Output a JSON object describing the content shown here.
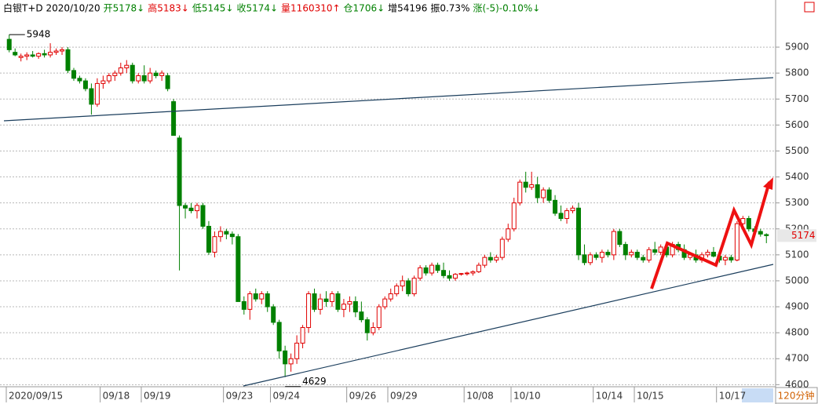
{
  "header": [
    {
      "text": "白银T+D 2020/10/20",
      "color": "#000000"
    },
    {
      "text": "开5178↓",
      "color": "#008000"
    },
    {
      "text": "高5183↓",
      "color": "#e00000"
    },
    {
      "text": "低5145↓",
      "color": "#008000"
    },
    {
      "text": "收5174↓",
      "color": "#008000"
    },
    {
      "text": "量1160310↑",
      "color": "#e00000"
    },
    {
      "text": "仓1706↓",
      "color": "#008000"
    },
    {
      "text": "增54196",
      "color": "#000000"
    },
    {
      "text": "振0.73%",
      "color": "#000000"
    },
    {
      "text": "涨(-5)-0.10%↓",
      "color": "#008000"
    }
  ],
  "chart_data": {
    "type": "candlestick",
    "up_color": "#e00000",
    "down_color": "#008000",
    "grid": true,
    "ylim": [
      4595,
      6015
    ],
    "yticks": [
      4600,
      4700,
      4800,
      4900,
      5000,
      5100,
      5200,
      5300,
      5400,
      5500,
      5600,
      5700,
      5800,
      5900
    ],
    "high_marker": 5948,
    "low_marker": 4629,
    "last_price": 5174,
    "period": "120分钟",
    "categories": [
      "2020/09/15",
      null,
      null,
      null,
      null,
      null,
      null,
      null,
      null,
      null,
      null,
      null,
      null,
      null,
      null,
      null,
      "09/18",
      null,
      null,
      null,
      null,
      null,
      null,
      "09/19",
      null,
      null,
      null,
      null,
      null,
      null,
      null,
      null,
      null,
      null,
      null,
      null,
      null,
      "09/23",
      null,
      null,
      null,
      null,
      null,
      null,
      null,
      "09/24",
      null,
      null,
      null,
      null,
      null,
      null,
      null,
      null,
      null,
      null,
      null,
      null,
      "09/26",
      null,
      null,
      null,
      null,
      null,
      null,
      "09/29",
      null,
      null,
      null,
      null,
      null,
      null,
      null,
      null,
      null,
      null,
      null,
      null,
      "10/08",
      null,
      null,
      null,
      null,
      null,
      null,
      null,
      "10/10",
      null,
      null,
      null,
      null,
      null,
      null,
      null,
      null,
      null,
      null,
      null,
      null,
      null,
      "10/14",
      null,
      null,
      null,
      null,
      null,
      null,
      "10/15",
      null,
      null,
      null,
      null,
      null,
      null,
      null,
      null,
      null,
      null,
      null,
      null,
      null,
      "10/17",
      null,
      null,
      null,
      null,
      null,
      null,
      null,
      null
    ],
    "open": [
      5930,
      5880,
      5860,
      5865,
      5870,
      5865,
      5875,
      5870,
      5880,
      5885,
      5890,
      5810,
      5780,
      5770,
      5740,
      5680,
      5760,
      5770,
      5790,
      5800,
      5820,
      5830,
      5770,
      5790,
      5770,
      5800,
      5790,
      5790,
      5690,
      5550,
      5290,
      5280,
      5270,
      5290,
      5210,
      5110,
      5170,
      5190,
      5180,
      5170,
      4920,
      4890,
      4950,
      4930,
      4950,
      4900,
      4840,
      4730,
      4680,
      4700,
      4760,
      4820,
      4950,
      4890,
      4930,
      4920,
      4950,
      4890,
      4910,
      4920,
      4880,
      4850,
      4800,
      4820,
      4900,
      4930,
      4950,
      4980,
      5000,
      4950,
      5010,
      5050,
      5030,
      5060,
      5040,
      5020,
      5010,
      5025,
      5028,
      5030,
      5035,
      5060,
      5090,
      5080,
      5090,
      5160,
      5200,
      5300,
      5380,
      5360,
      5370,
      5320,
      5350,
      5310,
      5260,
      5240,
      5270,
      5280,
      5100,
      5070,
      5100,
      5090,
      5110,
      5100,
      5190,
      5140,
      5100,
      5110,
      5090,
      5080,
      5120,
      5110,
      5130,
      5100,
      5140,
      5120,
      5090,
      5100,
      5080,
      5100,
      5110,
      5095,
      5080,
      5090,
      5080,
      5220,
      5240,
      5200,
      5190,
      5178
    ],
    "high": [
      5948,
      5895,
      5875,
      5880,
      5885,
      5880,
      5890,
      5915,
      5895,
      5900,
      5900,
      5820,
      5790,
      5780,
      5760,
      5780,
      5790,
      5800,
      5810,
      5840,
      5850,
      5840,
      5800,
      5830,
      5820,
      5810,
      5810,
      5800,
      5700,
      5560,
      5300,
      5300,
      5300,
      5300,
      5230,
      5190,
      5210,
      5200,
      5190,
      5180,
      4940,
      4960,
      4970,
      4960,
      4960,
      4910,
      4850,
      4750,
      4720,
      4790,
      4830,
      4960,
      4970,
      4950,
      4960,
      4960,
      4960,
      4930,
      4940,
      4940,
      4920,
      4860,
      4840,
      4910,
      4940,
      4970,
      4990,
      5020,
      5010,
      5020,
      5060,
      5060,
      5070,
      5070,
      5070,
      5040,
      5030,
      5030,
      5035,
      5040,
      5070,
      5100,
      5110,
      5100,
      5170,
      5220,
      5320,
      5390,
      5420,
      5420,
      5400,
      5360,
      5360,
      5330,
      5290,
      5280,
      5290,
      5300,
      5140,
      5110,
      5110,
      5120,
      5120,
      5200,
      5200,
      5150,
      5120,
      5120,
      5100,
      5130,
      5150,
      5140,
      5140,
      5150,
      5150,
      5140,
      5110,
      5120,
      5110,
      5120,
      5130,
      5110,
      5100,
      5100,
      5230,
      5250,
      5250,
      5210,
      5200,
      5183
    ],
    "low": [
      5880,
      5865,
      5845,
      5850,
      5860,
      5855,
      5860,
      5860,
      5870,
      5870,
      5800,
      5770,
      5760,
      5730,
      5640,
      5670,
      5740,
      5760,
      5770,
      5790,
      5800,
      5760,
      5760,
      5760,
      5760,
      5780,
      5770,
      5730,
      5560,
      5040,
      5240,
      5260,
      5240,
      5200,
      5100,
      5090,
      5150,
      5160,
      5140,
      4920,
      4870,
      4850,
      4920,
      4910,
      4880,
      4830,
      4700,
      4629,
      4650,
      4680,
      4740,
      4800,
      4880,
      4870,
      4900,
      4900,
      4880,
      4860,
      4880,
      4860,
      4840,
      4770,
      4790,
      4810,
      4890,
      4920,
      4940,
      4960,
      4940,
      4940,
      5000,
      5020,
      5020,
      5030,
      5010,
      5000,
      5000,
      5020,
      5020,
      5020,
      5030,
      5050,
      5070,
      5070,
      5080,
      5150,
      5190,
      5290,
      5340,
      5350,
      5300,
      5300,
      5300,
      5250,
      5230,
      5220,
      5260,
      5080,
      5060,
      5060,
      5080,
      5070,
      5090,
      5080,
      5130,
      5080,
      5090,
      5080,
      5070,
      5070,
      5100,
      5100,
      5090,
      5090,
      5110,
      5080,
      5080,
      5070,
      5070,
      5090,
      5090,
      5070,
      5060,
      5070,
      5075,
      5200,
      5190,
      5180,
      5170,
      5145
    ],
    "close": [
      5890,
      5870,
      5865,
      5870,
      5865,
      5875,
      5870,
      5880,
      5885,
      5890,
      5810,
      5780,
      5770,
      5740,
      5680,
      5760,
      5770,
      5790,
      5800,
      5820,
      5830,
      5770,
      5790,
      5770,
      5800,
      5790,
      5800,
      5740,
      5560,
      5290,
      5280,
      5270,
      5290,
      5210,
      5110,
      5170,
      5190,
      5180,
      5170,
      4920,
      4890,
      4950,
      4930,
      4950,
      4900,
      4840,
      4730,
      4680,
      4700,
      4760,
      4820,
      4950,
      4890,
      4930,
      4920,
      4950,
      4890,
      4910,
      4920,
      4880,
      4850,
      4800,
      4820,
      4900,
      4930,
      4950,
      4980,
      5000,
      4950,
      5010,
      5050,
      5030,
      5060,
      5040,
      5020,
      5010,
      5025,
      5028,
      5030,
      5035,
      5060,
      5090,
      5080,
      5090,
      5160,
      5200,
      5300,
      5380,
      5360,
      5370,
      5320,
      5350,
      5310,
      5260,
      5240,
      5270,
      5280,
      5100,
      5070,
      5100,
      5090,
      5110,
      5100,
      5190,
      5140,
      5100,
      5110,
      5090,
      5080,
      5120,
      5110,
      5130,
      5100,
      5140,
      5120,
      5090,
      5100,
      5080,
      5100,
      5110,
      5095,
      5080,
      5090,
      5080,
      5220,
      5240,
      5200,
      5190,
      5180,
      5174
    ]
  }
}
